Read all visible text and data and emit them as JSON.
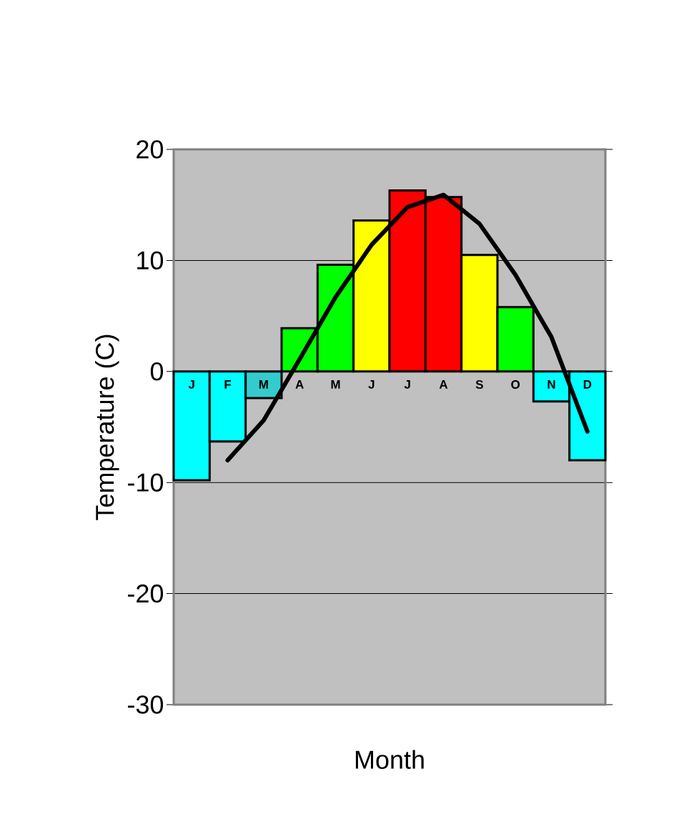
{
  "chart_data": {
    "type": "bar",
    "xlabel": "Month",
    "ylabel": "Temperature (C)",
    "categories": [
      "J",
      "F",
      "M",
      "A",
      "M",
      "J",
      "J",
      "A",
      "S",
      "O",
      "N",
      "D"
    ],
    "series": [
      {
        "values": [
          -9.8,
          -6.3,
          -2.4,
          3.9,
          9.6,
          13.6,
          16.3,
          15.7,
          10.5,
          5.8,
          -2.7,
          -8.0
        ],
        "colors": [
          "#00ffff",
          "#00ffff",
          "#33cccc",
          "#00ff00",
          "#00ff00",
          "#ffff00",
          "#ff0000",
          "#ff0000",
          "#ffff00",
          "#00ff00",
          "#00ffff",
          "#00ffff"
        ]
      },
      {
        "type": "line",
        "color": "#000000",
        "values": [
          null,
          -8.0,
          -4.4,
          1.1,
          6.7,
          11.4,
          14.8,
          15.9,
          13.3,
          8.7,
          3.1,
          -5.4
        ]
      }
    ],
    "ylim": [
      -30,
      20
    ],
    "yticks": [
      -30,
      -20,
      -10,
      0,
      10,
      20
    ],
    "grid": "y"
  }
}
